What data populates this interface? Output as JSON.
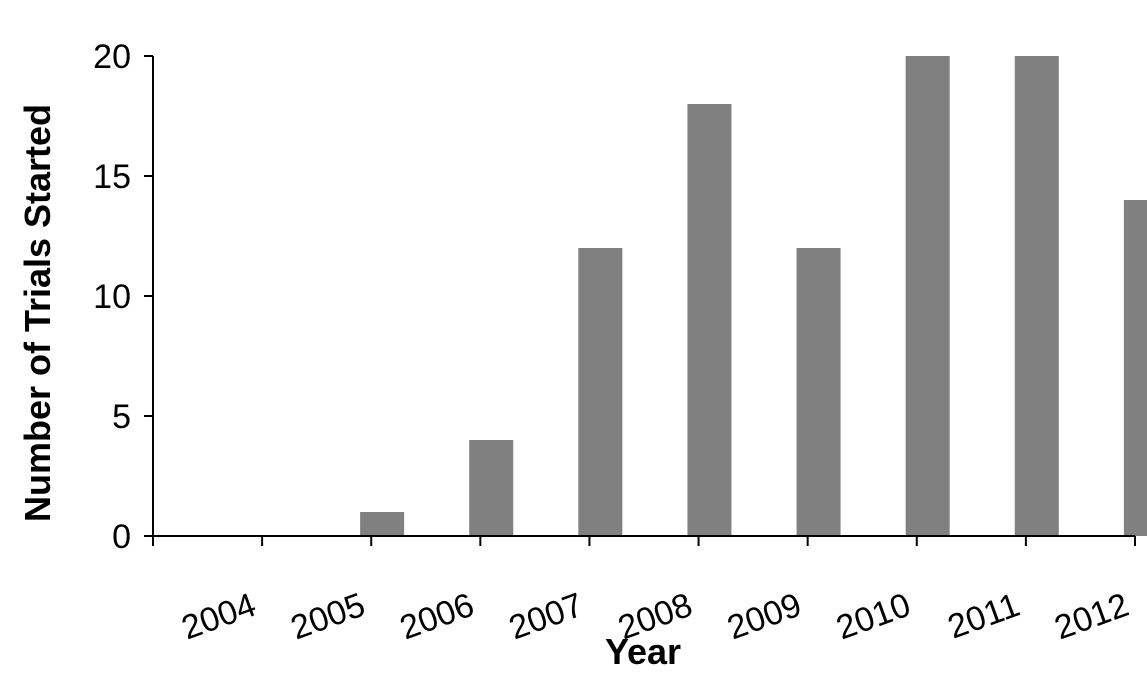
{
  "chart_data": {
    "type": "bar",
    "title": "",
    "xlabel": "Year",
    "ylabel": "Number of Trials Started",
    "categories": [
      "2004",
      "2005",
      "2006",
      "2007",
      "2008",
      "2009",
      "2010",
      "2011",
      "2012"
    ],
    "values": [
      0,
      1,
      4,
      12,
      18,
      12,
      20,
      20,
      14
    ],
    "ylim": [
      0,
      20
    ],
    "yticks": [
      "0",
      "5",
      "10",
      "15",
      "20"
    ],
    "grid": false,
    "legend": "none",
    "colors": {
      "bar": "#808080",
      "axis": "#000000"
    }
  }
}
